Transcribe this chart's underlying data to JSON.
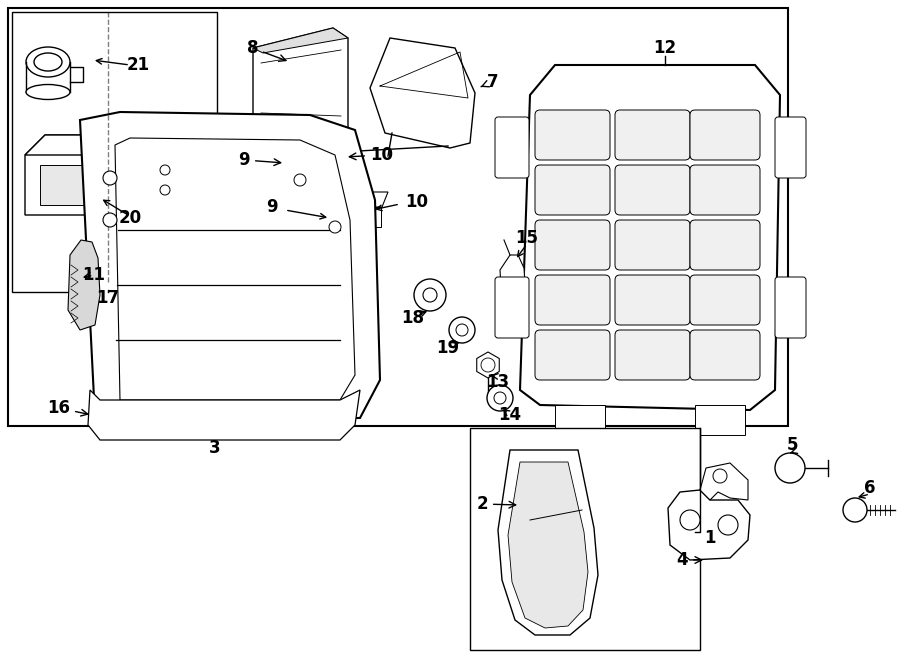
{
  "bg_color": "#ffffff",
  "line_color": "#000000",
  "fig_width": 9.0,
  "fig_height": 6.62,
  "dpi": 100
}
